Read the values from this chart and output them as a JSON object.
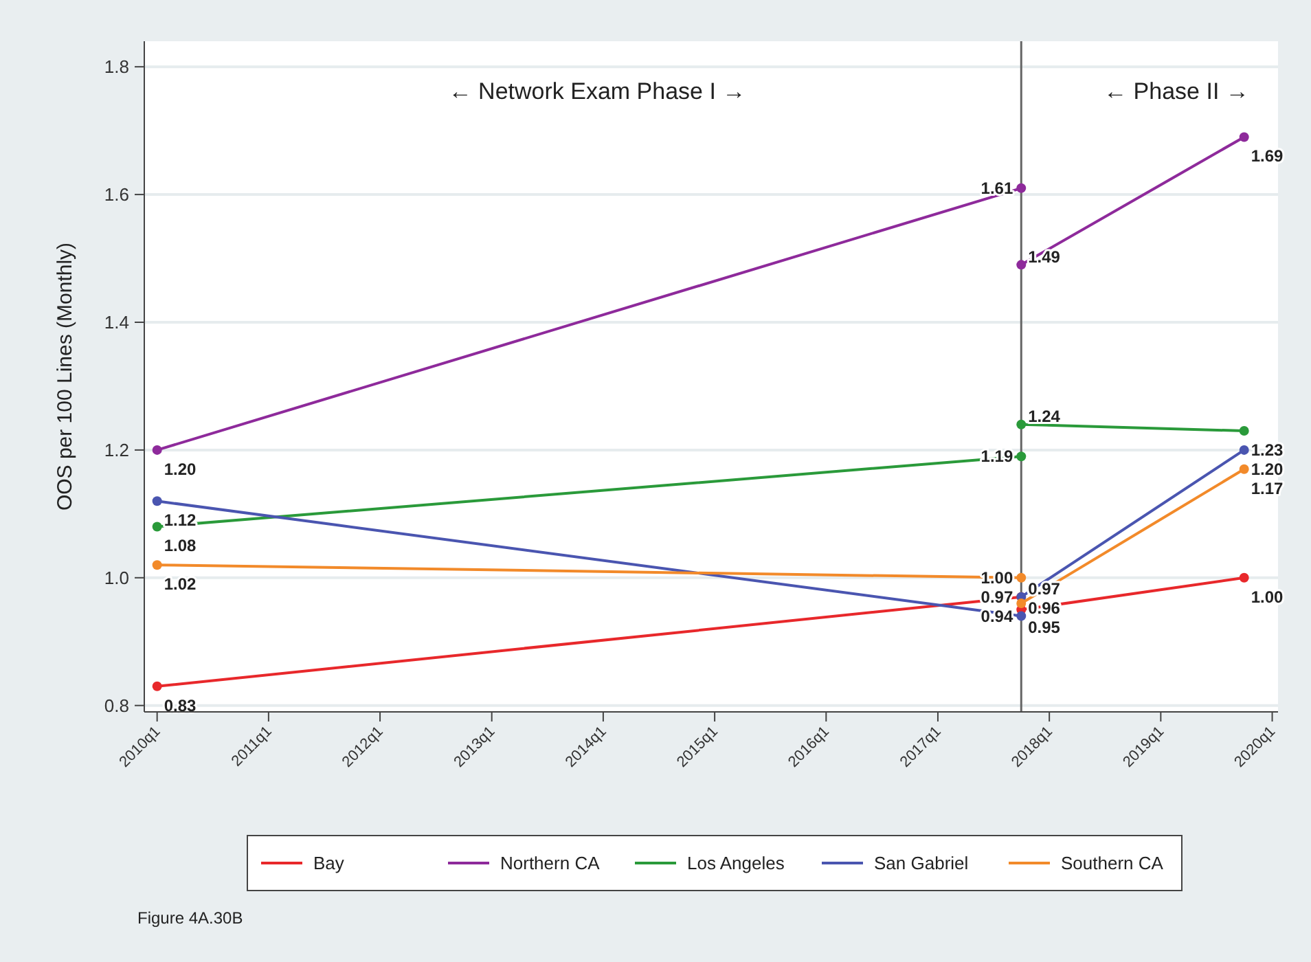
{
  "chart_data": {
    "type": "line",
    "ylabel": "OOS per 100 Lines (Monthly)",
    "x": [
      "2010-01",
      "2017-10",
      "2017-10",
      "2019-10"
    ],
    "series": [
      {
        "name": "Bay",
        "color": "#e8282b",
        "values": [
          0.83,
          0.97,
          0.95,
          1.0
        ],
        "value_labels": [
          "0.83",
          "0.97",
          "0.95",
          "1.00"
        ]
      },
      {
        "name": "Northern CA",
        "color": "#8e2a9b",
        "values": [
          1.2,
          1.61,
          1.49,
          1.69
        ],
        "value_labels": [
          "1.20",
          "1.61",
          "1.49",
          "1.69"
        ]
      },
      {
        "name": "Los Angeles",
        "color": "#2a9a3a",
        "values": [
          1.08,
          1.19,
          1.24,
          1.23
        ],
        "value_labels": [
          "1.08",
          "1.19",
          "1.24",
          "1.23"
        ]
      },
      {
        "name": "San Gabriel",
        "color": "#4a55b0",
        "values": [
          1.12,
          0.94,
          0.97,
          1.2
        ],
        "value_labels": [
          "1.12",
          "0.94",
          "0.97",
          "1.20"
        ]
      },
      {
        "name": "Southern CA",
        "color": "#f28a2a",
        "values": [
          1.02,
          1.0,
          0.96,
          1.17
        ],
        "value_labels": [
          "1.02",
          "1.00",
          "0.96",
          "1.17"
        ]
      }
    ],
    "xlim": [
      "2009-11-20",
      "2020-01-20"
    ],
    "xticks": [
      {
        "value": "2010-01",
        "label": "2010q1"
      },
      {
        "value": "2011-01",
        "label": "2011q1"
      },
      {
        "value": "2012-01",
        "label": "2012q1"
      },
      {
        "value": "2013-01",
        "label": "2013q1"
      },
      {
        "value": "2014-01",
        "label": "2014q1"
      },
      {
        "value": "2015-01",
        "label": "2015q1"
      },
      {
        "value": "2016-01",
        "label": "2016q1"
      },
      {
        "value": "2017-01",
        "label": "2017q1"
      },
      {
        "value": "2018-01",
        "label": "2018q1"
      },
      {
        "value": "2019-01",
        "label": "2019q1"
      },
      {
        "value": "2020-01",
        "label": "2020q1"
      }
    ],
    "ylim": [
      0.79,
      1.84
    ],
    "yticks": [
      0.8,
      {
        "value": 1,
        "label": "1.0"
      },
      1.2,
      1.4,
      1.6,
      1.8
    ],
    "ref_lines": [
      {
        "axis": "x",
        "value": "2017-10",
        "color": "#666666"
      }
    ],
    "annotations": [
      "← Network Exam Phase I →",
      "← Phase II →",
      "Figure 4A.30B"
    ],
    "grid": "y",
    "legend": "bottom",
    "marker": "circle",
    "line_style": "solid"
  }
}
